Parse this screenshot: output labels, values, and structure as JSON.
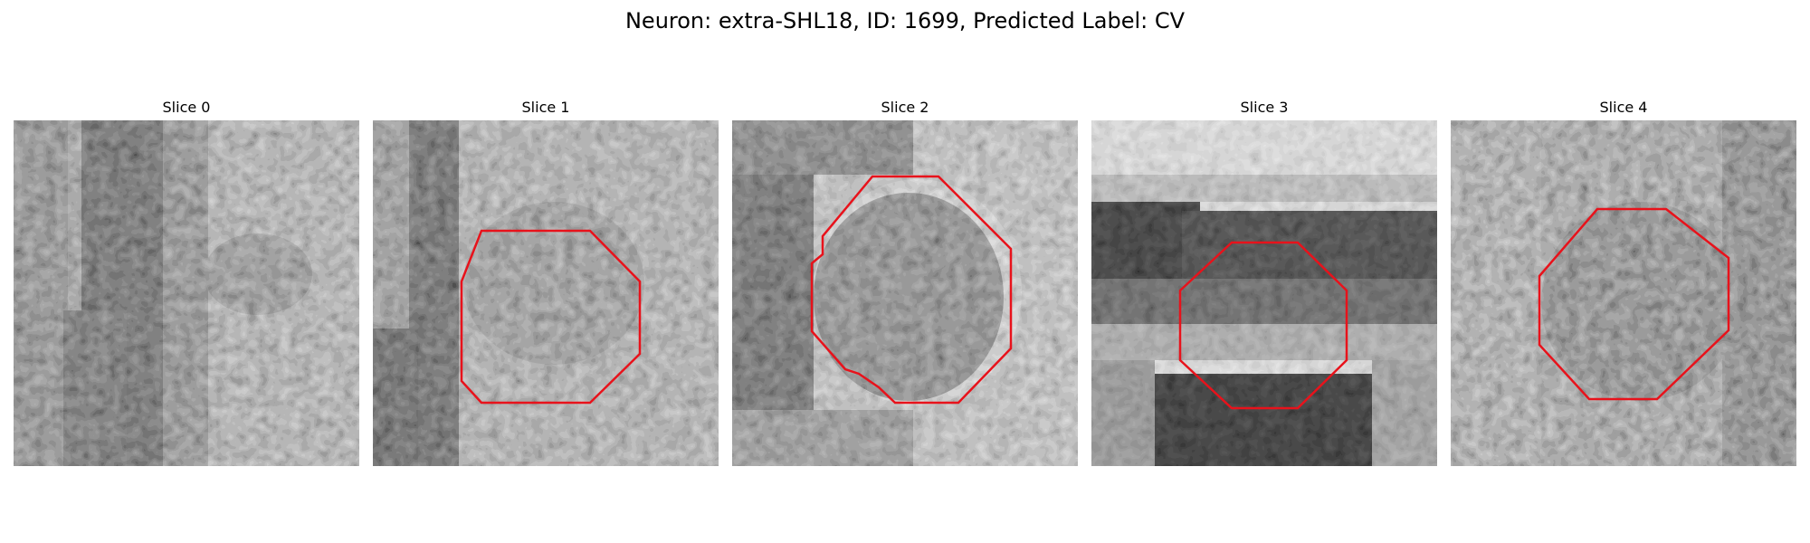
{
  "figure": {
    "title": "Neuron: extra-SHL18, ID: 1699, Predicted Label: CV",
    "outline_color": "#e8121b"
  },
  "panels": [
    {
      "title": "Slice 0",
      "has_outline": false
    },
    {
      "title": "Slice 1",
      "has_outline": true
    },
    {
      "title": "Slice 2",
      "has_outline": true
    },
    {
      "title": "Slice 3",
      "has_outline": true
    },
    {
      "title": "Slice 4",
      "has_outline": true
    }
  ]
}
